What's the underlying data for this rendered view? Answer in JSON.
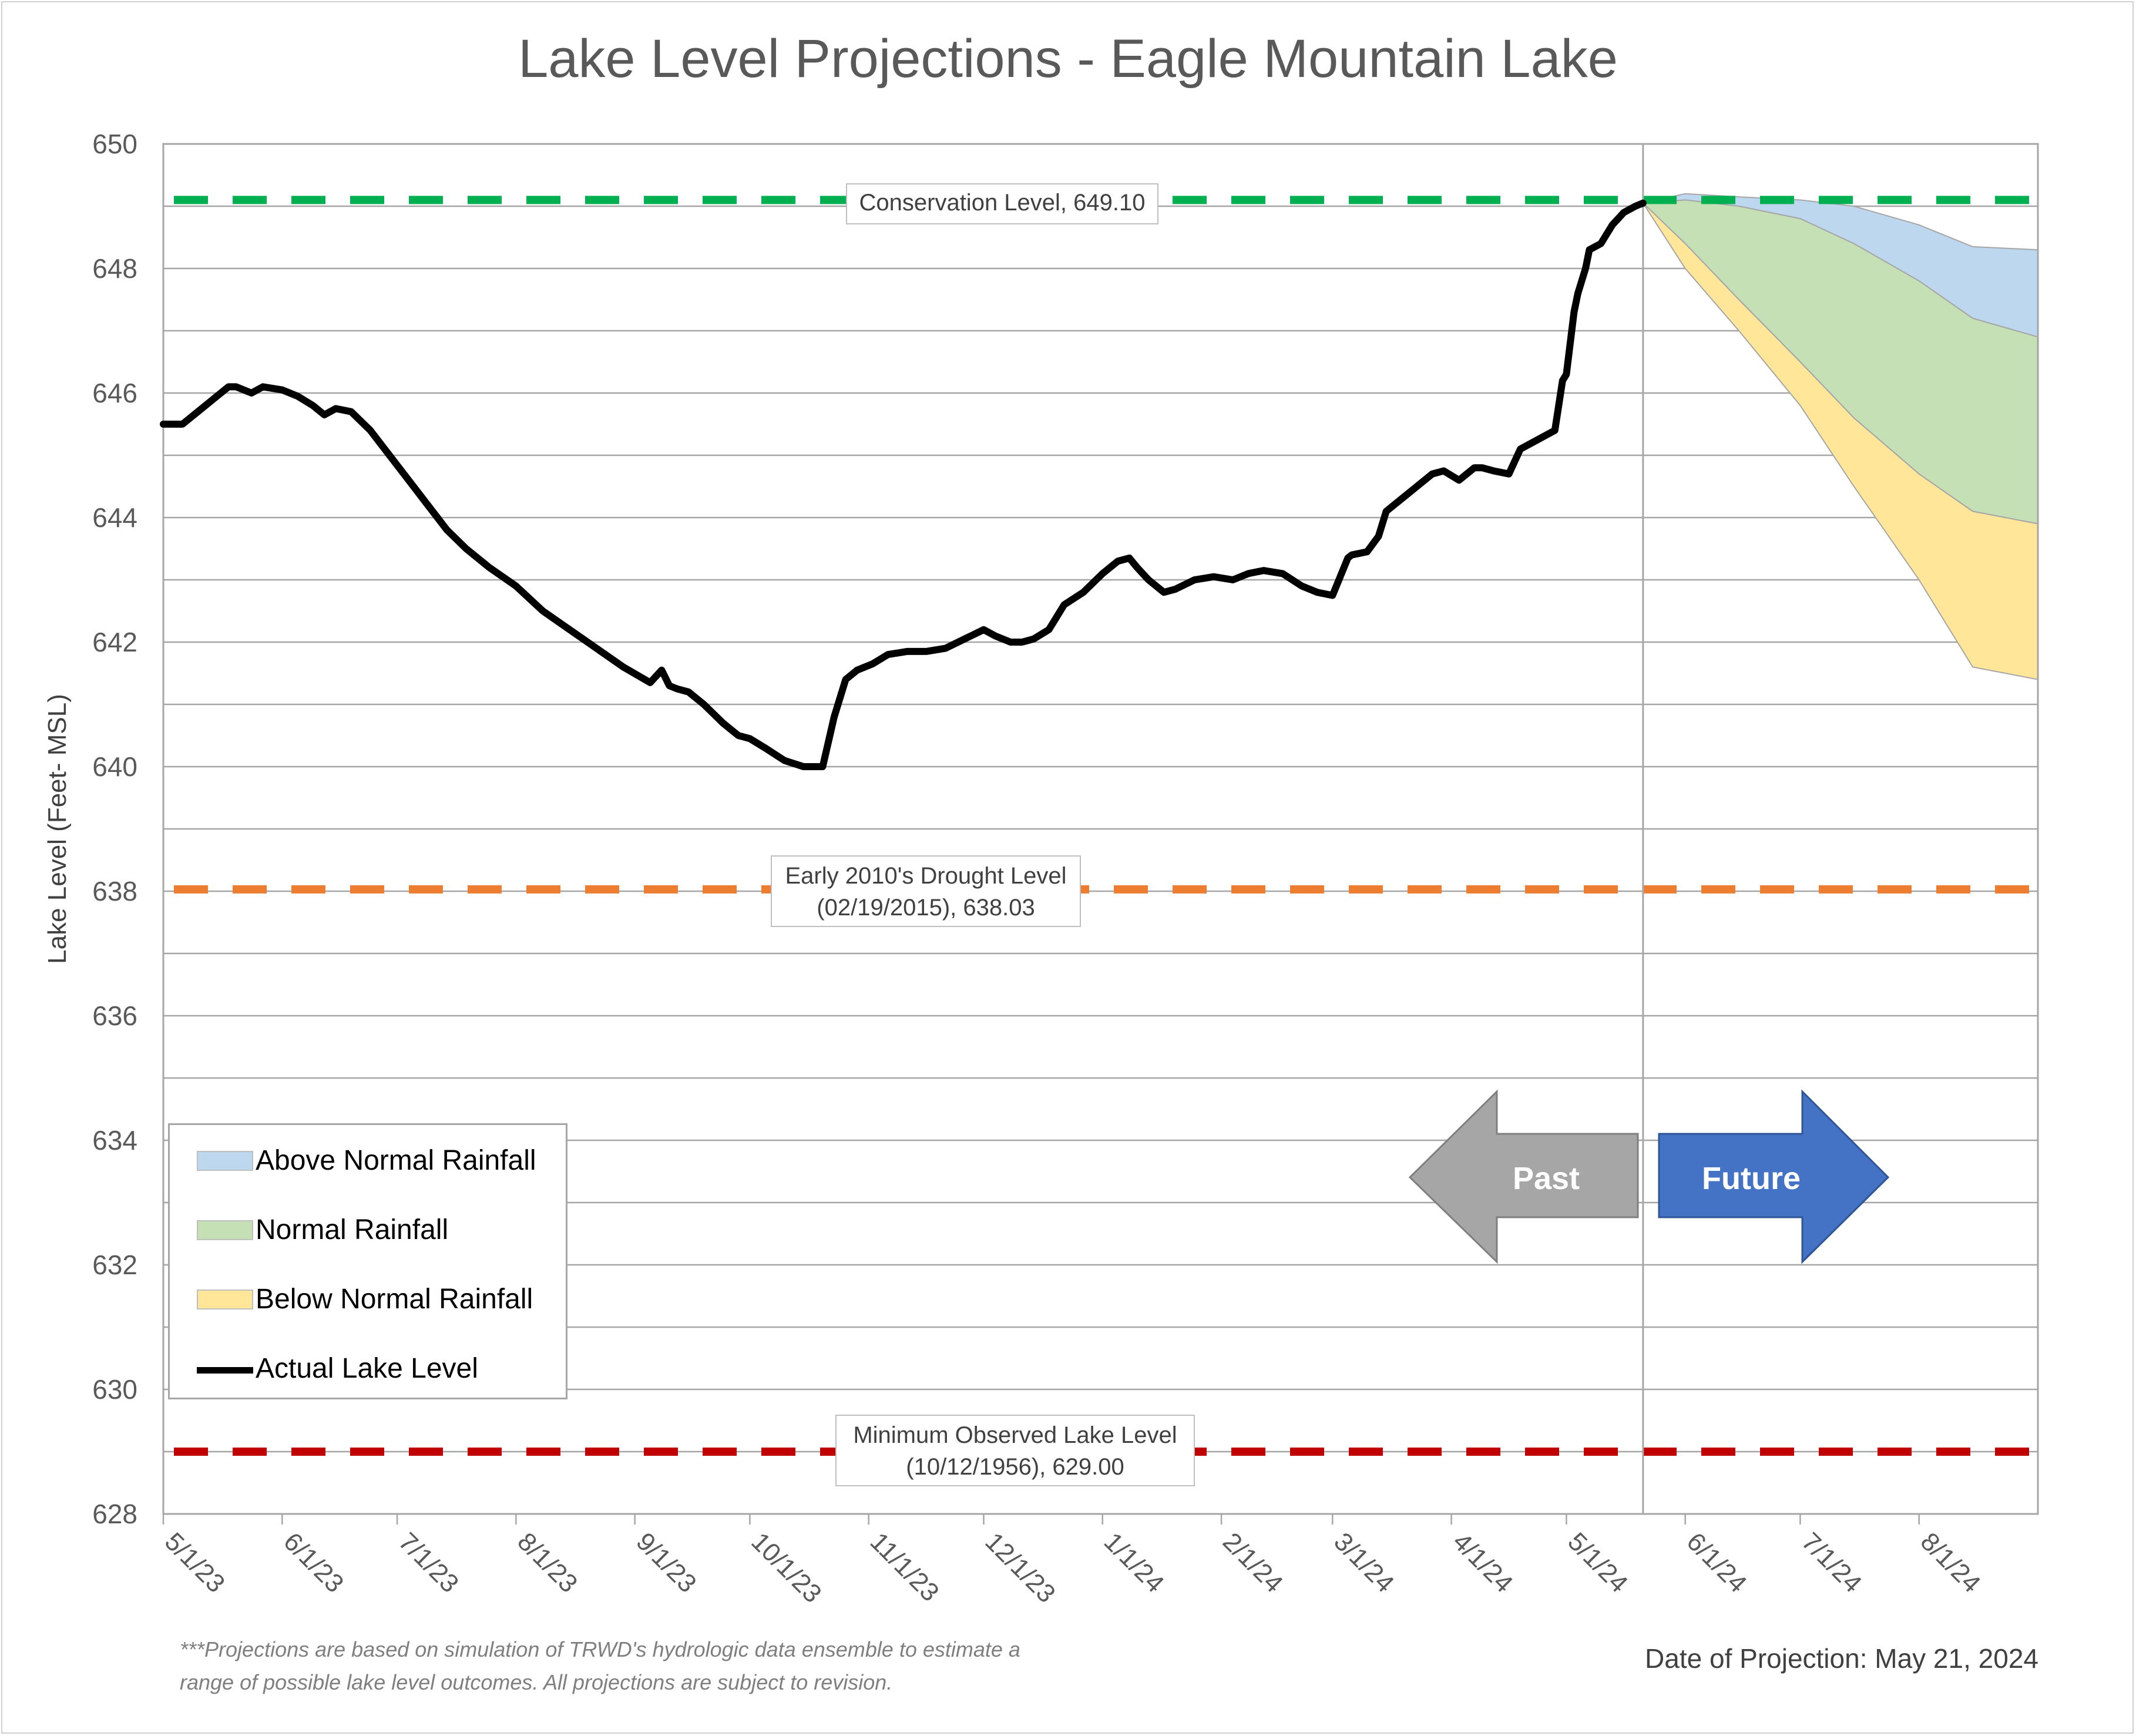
{
  "title": "Lake Level Projections - Eagle Mountain Lake",
  "footnote_line1": "***Projections are based on simulation of TRWD's hydrologic data ensemble to estimate a",
  "footnote_line2": "range of possible lake level outcomes.  All projections are subject to revision.",
  "projection_date": "Date of Projection: May 21, 2024",
  "arrows": {
    "past": "Past",
    "future": "Future"
  },
  "callouts": {
    "conservation": "Conservation Level, 649.10",
    "drought_line1": "Early 2010's Drought Level",
    "drought_line2": "(02/19/2015), 638.03",
    "minimum_line1": "Minimum Observed Lake Level",
    "minimum_line2": "(10/12/1956), 629.00"
  },
  "legend": {
    "above": "Above Normal Rainfall",
    "normal": "Normal Rainfall",
    "below": "Below Normal Rainfall",
    "actual": "Actual Lake Level"
  },
  "colors": {
    "above": "#bdd7ee",
    "normal": "#c5e0b4",
    "below": "#ffe699",
    "actual": "#000000",
    "conservation": "#00b050",
    "drought": "#ed7d31",
    "minimum": "#c00000",
    "past_arrow": "#a6a6a6",
    "future_arrow": "#4472c4"
  },
  "chart_data": {
    "type": "line",
    "title": "Lake Level Projections - Eagle Mountain Lake",
    "ylabel": "Lake Level (Feet- MSL)",
    "xlabel": "",
    "x_range": [
      "2023-05-01",
      "2024-09-01"
    ],
    "ylim": [
      628,
      650
    ],
    "y_ticks": [
      628,
      630,
      632,
      634,
      636,
      638,
      640,
      642,
      644,
      646,
      648,
      650
    ],
    "x_tick_labels": [
      "5/1/23",
      "6/1/23",
      "7/1/23",
      "8/1/23",
      "9/1/23",
      "10/1/23",
      "11/1/23",
      "12/1/23",
      "1/1/24",
      "2/1/24",
      "3/1/24",
      "4/1/24",
      "5/1/24",
      "6/1/24",
      "7/1/24",
      "8/1/24"
    ],
    "x_tick_dates": [
      "2023-05-01",
      "2023-06-01",
      "2023-07-01",
      "2023-08-01",
      "2023-09-01",
      "2023-10-01",
      "2023-11-01",
      "2023-12-01",
      "2024-01-01",
      "2024-02-01",
      "2024-03-01",
      "2024-04-01",
      "2024-05-01",
      "2024-06-01",
      "2024-07-01",
      "2024-08-01"
    ],
    "grid": true,
    "legend_position": "lower-left",
    "reference_lines": [
      {
        "name": "Conservation Level",
        "value": 649.1
      },
      {
        "name": "Early 2010's Drought Level",
        "value": 638.03
      },
      {
        "name": "Minimum Observed Lake Level",
        "value": 629.0
      }
    ],
    "projection_start": "2024-05-21",
    "series": [
      {
        "name": "Actual Lake Level",
        "x": [
          "2023-05-01",
          "2023-05-06",
          "2023-05-10",
          "2023-05-14",
          "2023-05-18",
          "2023-05-20",
          "2023-05-24",
          "2023-05-27",
          "2023-06-01",
          "2023-06-05",
          "2023-06-09",
          "2023-06-12",
          "2023-06-15",
          "2023-06-19",
          "2023-06-24",
          "2023-06-29",
          "2023-07-04",
          "2023-07-09",
          "2023-07-14",
          "2023-07-19",
          "2023-07-25",
          "2023-08-01",
          "2023-08-08",
          "2023-08-15",
          "2023-08-22",
          "2023-08-29",
          "2023-09-05",
          "2023-09-08",
          "2023-09-10",
          "2023-09-12",
          "2023-09-15",
          "2023-09-19",
          "2023-09-24",
          "2023-09-28",
          "2023-10-01",
          "2023-10-05",
          "2023-10-10",
          "2023-10-15",
          "2023-10-20",
          "2023-10-23",
          "2023-10-26",
          "2023-10-29",
          "2023-11-02",
          "2023-11-06",
          "2023-11-11",
          "2023-11-16",
          "2023-11-21",
          "2023-11-26",
          "2023-12-01",
          "2023-12-04",
          "2023-12-08",
          "2023-12-11",
          "2023-12-14",
          "2023-12-18",
          "2023-12-22",
          "2023-12-27",
          "2024-01-01",
          "2024-01-05",
          "2024-01-08",
          "2024-01-10",
          "2024-01-13",
          "2024-01-17",
          "2024-01-20",
          "2024-01-25",
          "2024-01-30",
          "2024-02-04",
          "2024-02-08",
          "2024-02-12",
          "2024-02-17",
          "2024-02-22",
          "2024-02-26",
          "2024-03-01",
          "2024-03-05",
          "2024-03-06",
          "2024-03-10",
          "2024-03-13",
          "2024-03-15",
          "2024-03-19",
          "2024-03-23",
          "2024-03-27",
          "2024-03-30",
          "2024-04-03",
          "2024-04-07",
          "2024-04-09",
          "2024-04-12",
          "2024-04-16",
          "2024-04-19",
          "2024-04-22",
          "2024-04-25",
          "2024-04-28",
          "2024-04-30",
          "2024-05-01",
          "2024-05-03",
          "2024-05-04",
          "2024-05-06",
          "2024-05-07",
          "2024-05-10",
          "2024-05-13",
          "2024-05-16",
          "2024-05-19",
          "2024-05-21"
        ],
        "y": [
          645.5,
          645.5,
          645.7,
          645.9,
          646.1,
          646.1,
          646.0,
          646.1,
          646.05,
          645.95,
          645.8,
          645.65,
          645.75,
          645.7,
          645.4,
          645.0,
          644.6,
          644.2,
          643.8,
          643.5,
          643.2,
          642.9,
          642.5,
          642.2,
          641.9,
          641.6,
          641.35,
          641.55,
          641.3,
          641.25,
          641.2,
          641.0,
          640.7,
          640.5,
          640.45,
          640.3,
          640.1,
          640.0,
          640.0,
          640.8,
          641.4,
          641.55,
          641.65,
          641.8,
          641.85,
          641.85,
          641.9,
          642.05,
          642.2,
          642.1,
          642.0,
          642.0,
          642.05,
          642.2,
          642.6,
          642.8,
          643.1,
          643.3,
          643.35,
          643.2,
          643.0,
          642.8,
          642.85,
          643.0,
          643.05,
          643.0,
          643.1,
          643.15,
          643.1,
          642.9,
          642.8,
          642.75,
          643.35,
          643.4,
          643.45,
          643.7,
          644.1,
          644.3,
          644.5,
          644.7,
          644.75,
          644.6,
          644.8,
          644.8,
          644.75,
          644.7,
          645.1,
          645.2,
          645.3,
          645.4,
          646.2,
          646.3,
          647.3,
          647.6,
          648.0,
          648.3,
          648.4,
          648.7,
          648.9,
          649.0,
          649.05
        ]
      },
      {
        "name": "Above Normal Rainfall",
        "x": [
          "2024-05-21",
          "2024-06-01",
          "2024-06-15",
          "2024-07-01",
          "2024-07-15",
          "2024-08-01",
          "2024-08-15",
          "2024-09-01"
        ],
        "y_upper": [
          649.05,
          649.2,
          649.15,
          649.1,
          649.0,
          648.7,
          648.35,
          648.3
        ],
        "y_lower": [
          649.05,
          649.1,
          649.0,
          648.8,
          648.4,
          647.8,
          647.2,
          646.9
        ]
      },
      {
        "name": "Normal Rainfall",
        "x": [
          "2024-05-21",
          "2024-06-01",
          "2024-06-15",
          "2024-07-01",
          "2024-07-15",
          "2024-08-01",
          "2024-08-15",
          "2024-09-01"
        ],
        "y_upper": [
          649.05,
          649.1,
          649.0,
          648.8,
          648.4,
          647.8,
          647.2,
          646.9
        ],
        "y_lower": [
          649.05,
          648.4,
          647.5,
          646.5,
          645.6,
          644.7,
          644.1,
          643.9
        ]
      },
      {
        "name": "Below Normal Rainfall",
        "x": [
          "2024-05-21",
          "2024-06-01",
          "2024-06-15",
          "2024-07-01",
          "2024-07-15",
          "2024-08-01",
          "2024-08-15",
          "2024-09-01"
        ],
        "y_upper": [
          649.05,
          648.4,
          647.5,
          646.5,
          645.6,
          644.7,
          644.1,
          643.9
        ],
        "y_lower": [
          649.05,
          648.0,
          647.0,
          645.8,
          644.5,
          643.0,
          641.6,
          641.4
        ]
      }
    ]
  }
}
